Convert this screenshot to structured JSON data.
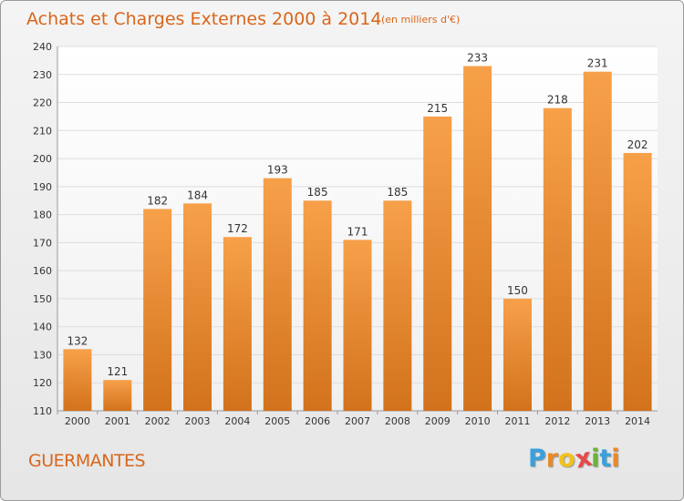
{
  "chart_data": {
    "type": "bar",
    "title": "Achats et Charges Externes 2000 à 2014",
    "subtitle": "(en milliers d'€)",
    "categories": [
      "2000",
      "2001",
      "2002",
      "2003",
      "2004",
      "2005",
      "2006",
      "2007",
      "2008",
      "2009",
      "2010",
      "2011",
      "2012",
      "2013",
      "2014"
    ],
    "values": [
      132,
      121,
      182,
      184,
      172,
      193,
      185,
      171,
      185,
      215,
      233,
      150,
      218,
      231,
      202
    ],
    "ylim": [
      110,
      240
    ],
    "yticks": [
      110,
      120,
      130,
      140,
      150,
      160,
      170,
      180,
      190,
      200,
      210,
      220,
      230,
      240
    ],
    "grid": true,
    "bar_color_top": "#f7a04a",
    "bar_color_bottom": "#d2721c"
  },
  "footer": {
    "place": "GUERMANTES",
    "brand": "Proxiti",
    "brand_letters": [
      "P",
      "r",
      "o",
      "x",
      "i",
      "t",
      "i"
    ],
    "brand_colors": [
      "#3aa0dc",
      "#e8892a",
      "#f2c21a",
      "#e84848",
      "#69b43c",
      "#3aa0dc",
      "#e8892a"
    ]
  }
}
